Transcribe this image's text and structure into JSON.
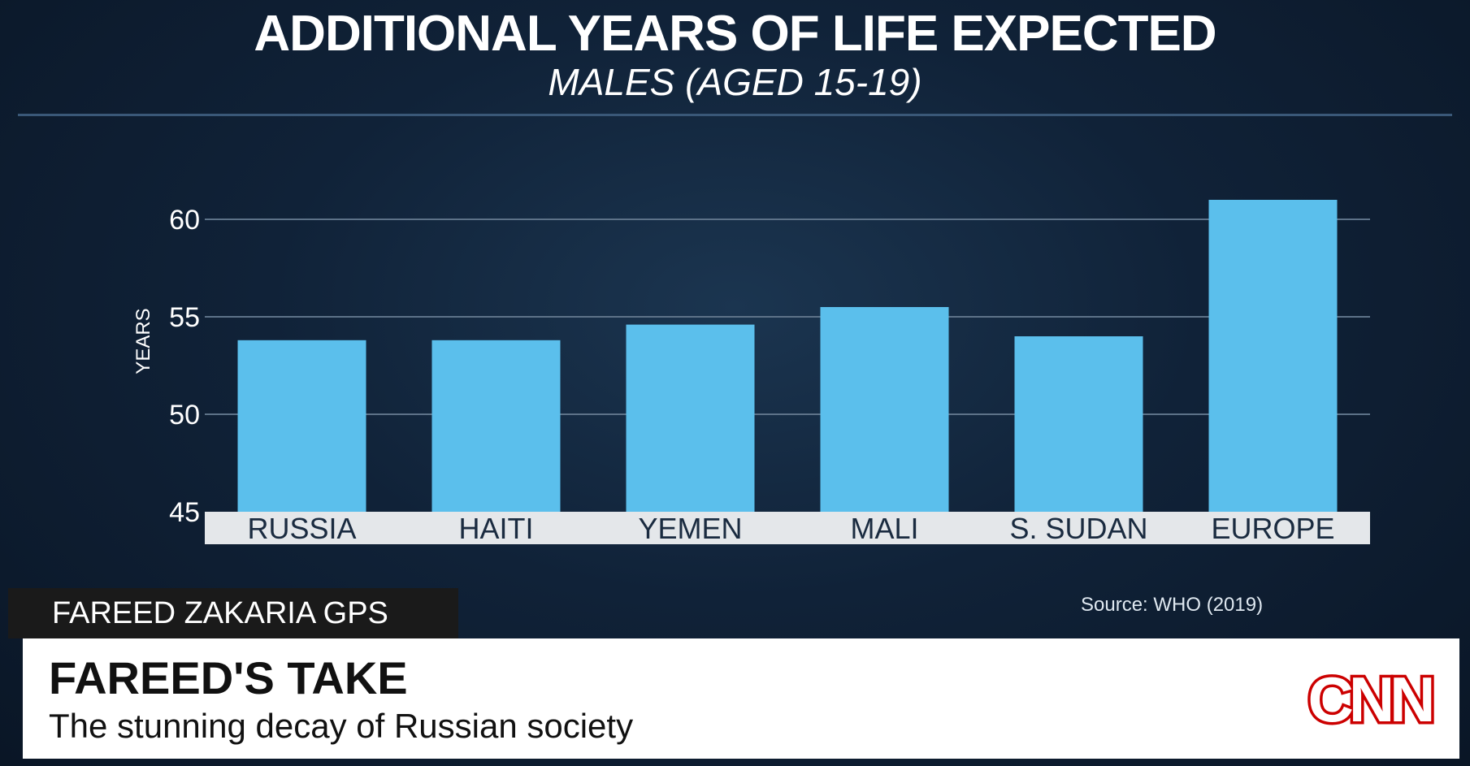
{
  "header": {
    "title": "ADDITIONAL YEARS OF LIFE EXPECTED",
    "subtitle": "MALES (AGED 15-19)"
  },
  "source": "Source: WHO (2019)",
  "show_tag": "FAREED ZAKARIA GPS",
  "lower_third": {
    "headline": "FAREED'S TAKE",
    "tagline": "The stunning decay of Russian society"
  },
  "logo": {
    "text": "CNN",
    "color": "#cc0000"
  },
  "colors": {
    "bar": "#5bbfec",
    "gridline": "#5d7288",
    "category_band": "#e4e7ea",
    "axis_text": "#ffffff",
    "category_text": "#1a2b40"
  },
  "chart_data": {
    "type": "bar",
    "categories": [
      "RUSSIA",
      "HAITI",
      "YEMEN",
      "MALI",
      "S. SUDAN",
      "EUROPE"
    ],
    "values": [
      53.8,
      53.8,
      54.6,
      55.5,
      54.0,
      61.0
    ],
    "ylabel": "YEARS",
    "ylim": [
      45,
      62
    ],
    "yticks": [
      45,
      50,
      55,
      60
    ],
    "grid": true
  }
}
